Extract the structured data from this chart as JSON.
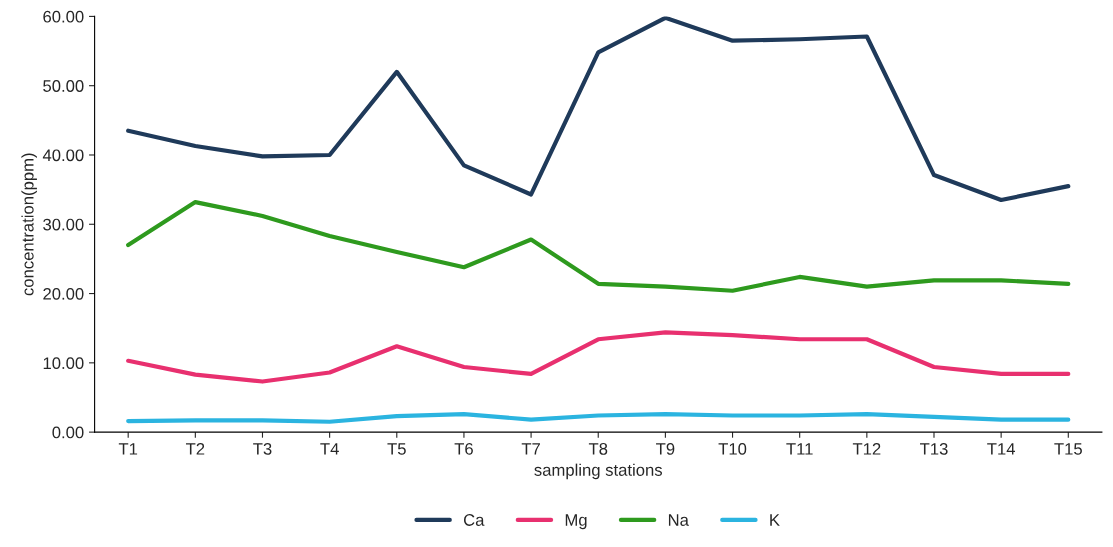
{
  "chart_data": {
    "type": "line",
    "xlabel": "sampling stations",
    "ylabel": "concentration(ppm)",
    "categories": [
      "T1",
      "T2",
      "T3",
      "T4",
      "T5",
      "T6",
      "T7",
      "T8",
      "T9",
      "T10",
      "T11",
      "T12",
      "T13",
      "T14",
      "T15"
    ],
    "series": [
      {
        "name": "Ca",
        "color": "#1f3a5a",
        "values": [
          43.5,
          41.3,
          39.8,
          40.0,
          52.0,
          38.5,
          34.3,
          54.8,
          59.8,
          56.5,
          56.7,
          57.1,
          37.1,
          33.5,
          35.5
        ]
      },
      {
        "name": "Mg",
        "color": "#e8306f",
        "values": [
          10.3,
          8.3,
          7.3,
          8.6,
          12.4,
          9.4,
          8.4,
          13.4,
          14.4,
          14.0,
          13.4,
          13.4,
          9.4,
          8.4,
          8.4
        ]
      },
      {
        "name": "Na",
        "color": "#2e9a1e",
        "values": [
          27.0,
          33.2,
          31.2,
          28.3,
          26.0,
          23.8,
          27.8,
          21.4,
          21.0,
          20.4,
          22.4,
          21.0,
          21.9,
          21.9,
          21.4
        ]
      },
      {
        "name": "K",
        "color": "#2bb4e0",
        "values": [
          1.6,
          1.7,
          1.7,
          1.5,
          2.3,
          2.6,
          1.8,
          2.4,
          2.6,
          2.4,
          2.4,
          2.6,
          2.2,
          1.8,
          1.8
        ]
      }
    ],
    "ylim": [
      0,
      60
    ],
    "yticks": [
      {
        "value": 0,
        "label": "0.00"
      },
      {
        "value": 10,
        "label": "10.00"
      },
      {
        "value": 20,
        "label": "20.00"
      },
      {
        "value": 30,
        "label": "30.00"
      },
      {
        "value": 40,
        "label": "40.00"
      },
      {
        "value": 50,
        "label": "50.00"
      },
      {
        "value": 60,
        "label": "60.00"
      }
    ],
    "grid": false,
    "legend": "bottom",
    "marker": "none",
    "line_style": "solid"
  }
}
